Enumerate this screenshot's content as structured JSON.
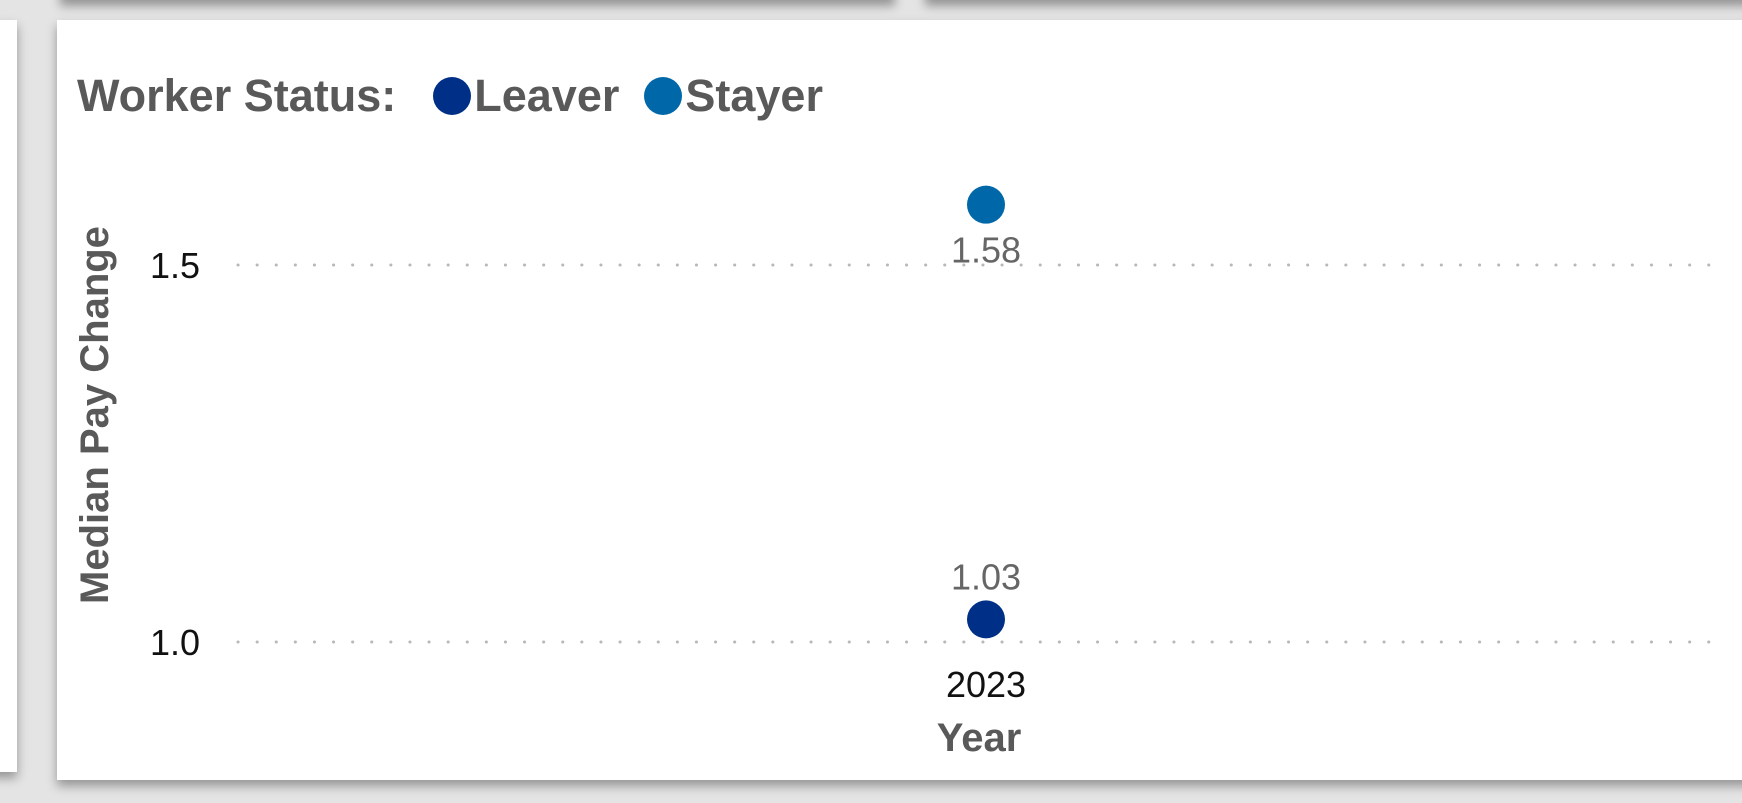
{
  "legend": {
    "title": "Worker Status:",
    "items": [
      {
        "label": "Leaver",
        "color": "#002f87"
      },
      {
        "label": "Stayer",
        "color": "#0068a8"
      }
    ]
  },
  "chart_data": {
    "type": "scatter",
    "title": "",
    "xlabel": "Year",
    "ylabel": "Median Pay Change",
    "categories": [
      "2023"
    ],
    "series": [
      {
        "name": "Leaver",
        "color": "#002f87",
        "values": [
          1.03
        ],
        "data_labels": [
          "1.03"
        ],
        "label_position": "above"
      },
      {
        "name": "Stayer",
        "color": "#0068a8",
        "values": [
          1.58
        ],
        "data_labels": [
          "1.58"
        ],
        "label_position": "below"
      }
    ],
    "y_ticks": [
      1.0,
      1.5
    ],
    "y_tick_labels": [
      "1.0",
      "1.5"
    ],
    "ylim": [
      0.98,
      1.62
    ],
    "grid": true,
    "grid_style": "dotted",
    "legend_position": "top-left"
  }
}
